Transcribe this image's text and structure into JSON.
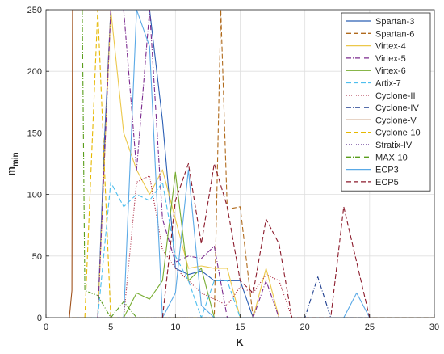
{
  "chart_data": {
    "type": "line",
    "title": "",
    "xlabel": "K",
    "ylabel_main": "m",
    "ylabel_sub": "min",
    "xlim": [
      0,
      30
    ],
    "ylim": [
      0,
      250
    ],
    "xticks": [
      0,
      5,
      10,
      15,
      20,
      25,
      30
    ],
    "yticks": [
      0,
      50,
      100,
      150,
      200,
      250
    ],
    "grid": true,
    "legend_position": "top-right",
    "series": [
      {
        "name": "Spartan-3",
        "color": "#2b5fb4",
        "dash": "",
        "x": [
          2,
          3,
          4,
          4.5,
          5,
          6,
          7,
          8,
          9,
          10,
          11,
          12,
          13,
          14,
          15,
          16,
          17
        ],
        "y": [
          0,
          0,
          0,
          140,
          250,
          250,
          250,
          250,
          160,
          40,
          35,
          38,
          30,
          30,
          30,
          0,
          0
        ]
      },
      {
        "name": "Spartan-6",
        "color": "#b06a1c",
        "dash": "6,3",
        "x": [
          2,
          3,
          4,
          5,
          6,
          7,
          8,
          9,
          10,
          11,
          12,
          13,
          13.5,
          14,
          15,
          16,
          17,
          18,
          19,
          20,
          25,
          30
        ],
        "y": [
          0,
          0,
          0,
          0,
          0,
          0,
          0,
          0,
          0,
          0,
          0,
          0,
          250,
          88,
          90,
          0,
          0,
          0,
          0,
          0,
          0,
          0
        ]
      },
      {
        "name": "Virtex-4",
        "color": "#ecc84a",
        "dash": "",
        "x": [
          4,
          5,
          6,
          7,
          8,
          9,
          10,
          11,
          12,
          13,
          14,
          15,
          16,
          17,
          18,
          19
        ],
        "y": [
          0,
          250,
          150,
          120,
          100,
          120,
          80,
          40,
          42,
          40,
          40,
          0,
          0,
          40,
          0,
          0
        ]
      },
      {
        "name": "Virtex-5",
        "color": "#7b2a8e",
        "dash": "6,2,1,2",
        "x": [
          4,
          5,
          6,
          7,
          8,
          9,
          10,
          11,
          12,
          13,
          14,
          15,
          16,
          17,
          18,
          19
        ],
        "y": [
          0,
          250,
          250,
          120,
          250,
          80,
          45,
          50,
          48,
          58,
          0,
          0,
          0,
          30,
          0,
          0
        ]
      },
      {
        "name": "Virtex-6",
        "color": "#77ac30",
        "dash": "",
        "x": [
          4,
          5,
          6,
          7,
          8,
          9,
          10,
          11,
          12,
          13,
          14,
          15,
          16,
          17,
          18
        ],
        "y": [
          0,
          0,
          0,
          20,
          15,
          30,
          118,
          30,
          40,
          0,
          0,
          0,
          0,
          0,
          0
        ]
      },
      {
        "name": "Artix-7",
        "color": "#4dbeee",
        "dash": "6,3",
        "x": [
          3,
          4,
          5,
          6,
          7,
          8,
          9,
          10,
          11,
          12,
          13,
          14,
          15,
          16
        ],
        "y": [
          0,
          0,
          110,
          90,
          100,
          95,
          110,
          50,
          30,
          0,
          30,
          30,
          0,
          0
        ]
      },
      {
        "name": "Cyclone-II",
        "color": "#a2142f",
        "dash": "1,2",
        "x": [
          4,
          5,
          6,
          7,
          8,
          9,
          10,
          11,
          12,
          13,
          14,
          15,
          16,
          17,
          18,
          19
        ],
        "y": [
          0,
          0,
          0,
          110,
          115,
          55,
          40,
          30,
          20,
          15,
          10,
          25,
          20,
          35,
          30,
          0
        ]
      },
      {
        "name": "Cyclone-IV",
        "color": "#1f3f8f",
        "dash": "6,2,1,2",
        "x": [
          4,
          5,
          6,
          7,
          8,
          9,
          10,
          11,
          12,
          13,
          14,
          15,
          16,
          17,
          18,
          19,
          20,
          21,
          22,
          23,
          24,
          25
        ],
        "y": [
          0,
          0,
          0,
          0,
          0,
          0,
          0,
          0,
          0,
          0,
          0,
          0,
          0,
          0,
          0,
          0,
          0,
          33,
          0,
          0,
          0,
          0
        ]
      },
      {
        "name": "Cyclone-V",
        "color": "#a0521c",
        "dash": "",
        "x": [
          1.8,
          2,
          2.05,
          3,
          4,
          5
        ],
        "y": [
          0,
          22,
          250,
          250,
          250,
          250
        ]
      },
      {
        "name": "Cyclone-10",
        "color": "#e6b800",
        "dash": "6,3",
        "x": [
          3,
          4,
          5,
          6,
          7,
          8,
          9,
          10,
          11,
          12,
          13,
          14,
          15,
          16
        ],
        "y": [
          0,
          250,
          0,
          0,
          0,
          0,
          0,
          0,
          0,
          0,
          0,
          0,
          0,
          0
        ]
      },
      {
        "name": "Stratix-IV",
        "color": "#5a2a8e",
        "dash": "1,2",
        "x": [
          4,
          5,
          6,
          7,
          8,
          9,
          10,
          11,
          12,
          13,
          14,
          15,
          16,
          17,
          18,
          19
        ],
        "y": [
          0,
          0,
          0,
          0,
          0,
          0,
          0,
          0,
          0,
          0,
          0,
          0,
          0,
          0,
          0,
          0
        ]
      },
      {
        "name": "MAX-10",
        "color": "#5a9e1c",
        "dash": "6,2,1,2",
        "x": [
          2.8,
          3,
          4,
          5,
          6,
          7,
          8
        ],
        "y": [
          250,
          22,
          18,
          0,
          13,
          0,
          0
        ]
      },
      {
        "name": "ECP3",
        "color": "#5aa9e6",
        "dash": "",
        "x": [
          6,
          7,
          8,
          9,
          10,
          11,
          12,
          13,
          14,
          15,
          16,
          17,
          18,
          19,
          20,
          21,
          22,
          23,
          24,
          25
        ],
        "y": [
          0,
          250,
          220,
          0,
          20,
          120,
          10,
          0,
          0,
          0,
          0,
          0,
          0,
          0,
          0,
          0,
          0,
          0,
          20,
          0
        ]
      },
      {
        "name": "ECP5",
        "color": "#8b1a2b",
        "dash": "6,3",
        "x": [
          9,
          10,
          11,
          12,
          13,
          14,
          15,
          16,
          17,
          18,
          19,
          20,
          21,
          22,
          23,
          24,
          25
        ],
        "y": [
          0,
          95,
          125,
          60,
          125,
          90,
          30,
          20,
          80,
          60,
          0,
          0,
          0,
          0,
          90,
          45,
          0
        ]
      }
    ]
  }
}
